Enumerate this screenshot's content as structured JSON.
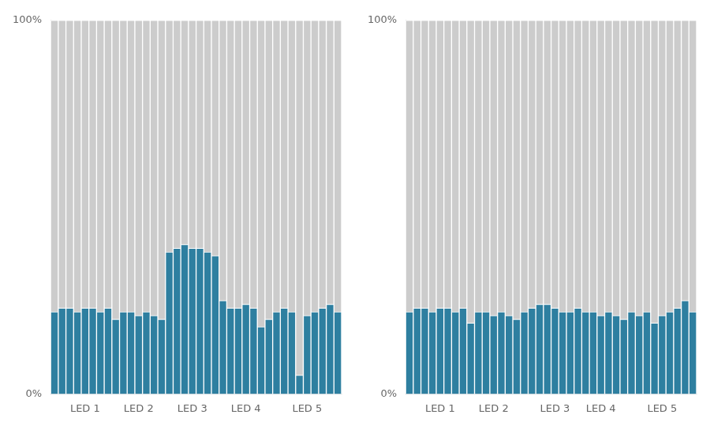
{
  "chart_data": [
    {
      "type": "bar",
      "stacked": true,
      "grid": false,
      "categories": [
        null,
        null,
        null,
        null,
        "LED 1",
        null,
        null,
        null,
        null,
        null,
        null,
        "LED 2",
        null,
        null,
        null,
        null,
        null,
        null,
        "LED 3",
        null,
        null,
        null,
        null,
        null,
        null,
        "LED 4",
        null,
        null,
        null,
        null,
        null,
        null,
        null,
        "LED 5",
        null,
        null,
        null,
        null
      ],
      "series": [
        {
          "color": "#2e7fa0",
          "values": [
            22,
            23,
            23,
            22,
            23,
            23,
            22,
            23,
            20,
            22,
            22,
            21,
            22,
            21,
            20,
            38,
            39,
            40,
            39,
            39,
            38,
            37,
            25,
            23,
            23,
            24,
            23,
            18,
            20,
            22,
            23,
            22,
            5,
            21,
            22,
            23,
            24,
            22
          ]
        },
        {
          "color": "#cccccc",
          "values": [
            78,
            77,
            77,
            78,
            77,
            77,
            78,
            77,
            80,
            78,
            78,
            79,
            78,
            79,
            80,
            62,
            61,
            60,
            61,
            61,
            62,
            63,
            75,
            77,
            77,
            76,
            77,
            82,
            80,
            78,
            77,
            78,
            95,
            79,
            78,
            77,
            76,
            78
          ]
        }
      ],
      "ylim": [
        0,
        100
      ],
      "yticks": [
        {
          "value": 0,
          "label": "0%"
        },
        {
          "value": 100,
          "label": "100%"
        }
      ]
    },
    {
      "type": "bar",
      "stacked": true,
      "grid": false,
      "categories": [
        null,
        null,
        null,
        null,
        "LED 1",
        null,
        null,
        null,
        null,
        null,
        null,
        "LED 2",
        null,
        null,
        null,
        null,
        null,
        null,
        null,
        "LED 3",
        null,
        null,
        null,
        null,
        null,
        "LED 4",
        null,
        null,
        null,
        null,
        null,
        null,
        null,
        "LED 5",
        null,
        null,
        null,
        null
      ],
      "series": [
        {
          "color": "#2e7fa0",
          "values": [
            22,
            23,
            23,
            22,
            23,
            23,
            22,
            23,
            19,
            22,
            22,
            21,
            22,
            21,
            20,
            22,
            23,
            24,
            24,
            23,
            22,
            22,
            23,
            22,
            22,
            21,
            22,
            21,
            20,
            22,
            21,
            22,
            19,
            21,
            22,
            23,
            25,
            22
          ]
        },
        {
          "color": "#cccccc",
          "values": [
            78,
            77,
            77,
            78,
            77,
            77,
            78,
            77,
            81,
            78,
            78,
            79,
            78,
            79,
            80,
            78,
            77,
            76,
            76,
            77,
            78,
            78,
            77,
            78,
            78,
            79,
            78,
            79,
            80,
            78,
            79,
            78,
            81,
            79,
            78,
            77,
            75,
            78
          ]
        }
      ],
      "ylim": [
        0,
        100
      ],
      "yticks": [
        {
          "value": 0,
          "label": "0%"
        },
        {
          "value": 100,
          "label": "100%"
        }
      ]
    }
  ]
}
